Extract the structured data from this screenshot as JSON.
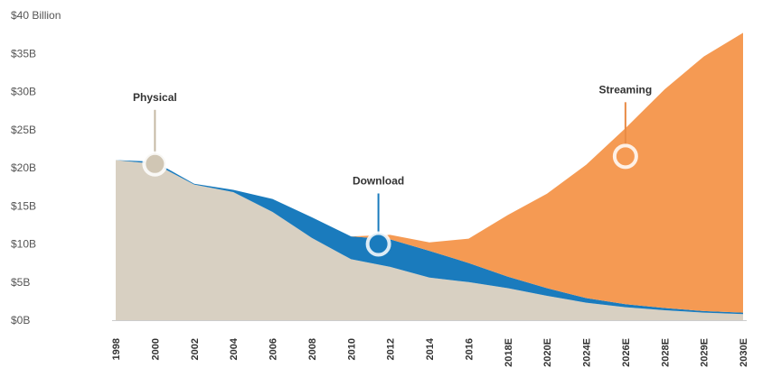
{
  "chart_data": {
    "type": "area",
    "stacked": true,
    "title": "",
    "xlabel": "",
    "ylabel": "",
    "ylim": [
      0,
      40
    ],
    "grid": false,
    "legend": "none",
    "y_ticks": [
      {
        "value": 0,
        "label": "$0B"
      },
      {
        "value": 5,
        "label": "$5B"
      },
      {
        "value": 10,
        "label": "$10B"
      },
      {
        "value": 15,
        "label": "$15B"
      },
      {
        "value": 20,
        "label": "$20B"
      },
      {
        "value": 25,
        "label": "$25B"
      },
      {
        "value": 30,
        "label": "$30B"
      },
      {
        "value": 35,
        "label": "$35B"
      },
      {
        "value": 40,
        "label": "$40 Billion"
      }
    ],
    "x_ticks": [
      "1998",
      "2000",
      "2002",
      "2004",
      "2006",
      "2008",
      "2010",
      "2012",
      "2014",
      "2016",
      "2018E",
      "2020E",
      "2024E",
      "2026E",
      "2028E",
      "2029E",
      "2030E"
    ],
    "x": [
      0,
      1,
      2,
      3,
      4,
      5,
      6,
      7,
      8,
      9,
      10,
      11,
      12,
      13,
      14,
      15,
      16
    ],
    "series": [
      {
        "name": "Physical",
        "color": "#d8d0c2",
        "values": [
          21.0,
          20.5,
          17.8,
          16.8,
          14.2,
          10.8,
          8.0,
          7.0,
          5.6,
          5.0,
          4.2,
          3.2,
          2.3,
          1.7,
          1.3,
          1.0,
          0.8
        ]
      },
      {
        "name": "Download",
        "color": "#1a7bbd",
        "values": [
          0.0,
          0.3,
          0.1,
          0.3,
          1.7,
          2.7,
          3.0,
          3.6,
          3.5,
          2.5,
          1.5,
          1.0,
          0.6,
          0.4,
          0.3,
          0.2,
          0.2
        ]
      },
      {
        "name": "Streaming",
        "color": "#f59a53",
        "values": [
          0.0,
          0.0,
          0.0,
          0.0,
          0.0,
          0.0,
          0.0,
          0.6,
          1.1,
          3.2,
          8.1,
          12.4,
          17.5,
          23.1,
          28.7,
          33.4,
          36.7
        ]
      }
    ],
    "annotations": [
      {
        "label": "Physical",
        "series": "Physical",
        "x": 1,
        "y": 20.5
      },
      {
        "label": "Download",
        "series": "Download",
        "x": 6.7,
        "y": 10.0
      },
      {
        "label": "Streaming",
        "series": "Streaming",
        "x": 13.0,
        "y": 21.5
      }
    ]
  }
}
